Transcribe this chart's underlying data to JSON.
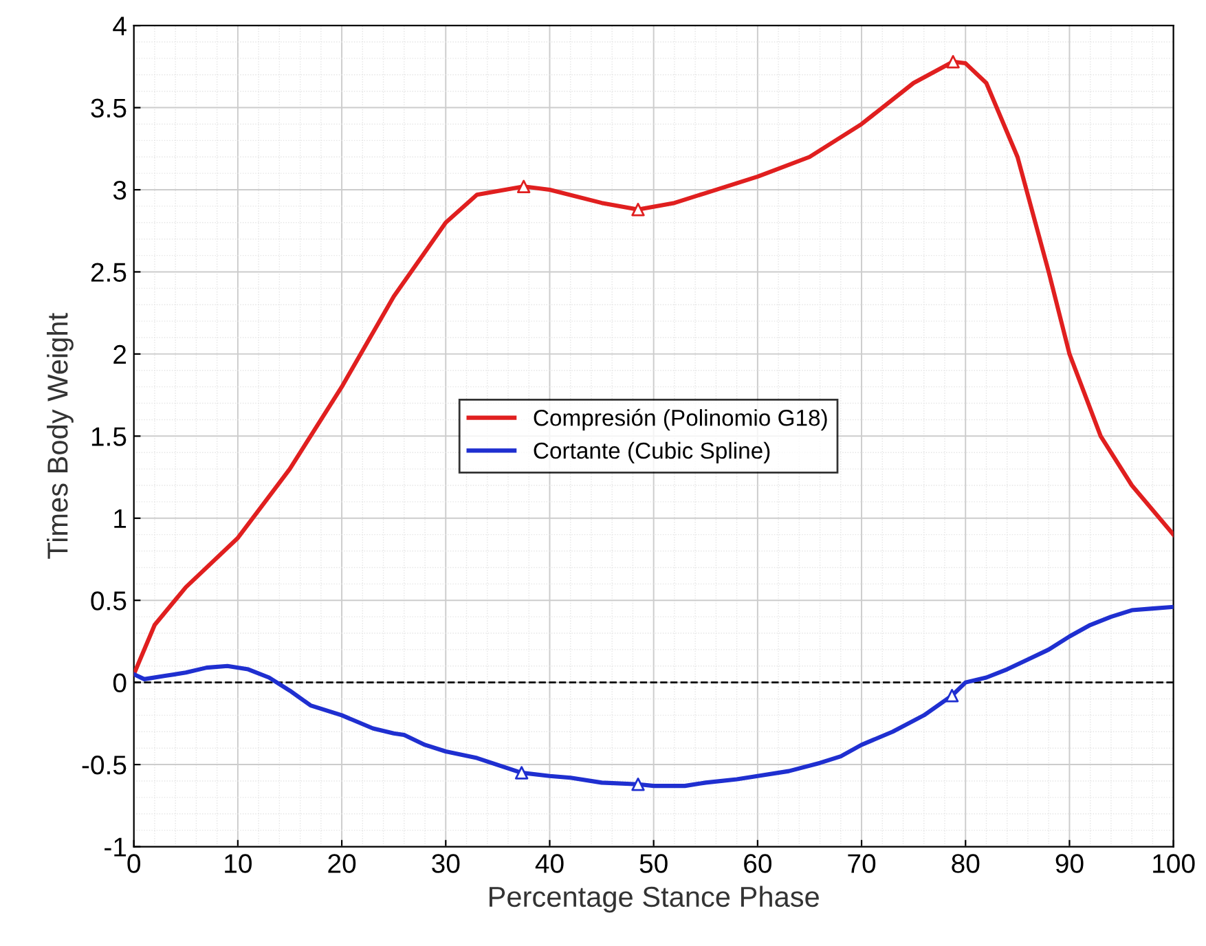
{
  "chart_data": {
    "type": "line",
    "xlabel": "Percentage Stance Phase",
    "ylabel": "Times Body Weight",
    "xlim": [
      0,
      100
    ],
    "ylim": [
      -1,
      4
    ],
    "xticks": [
      0,
      10,
      20,
      30,
      40,
      50,
      60,
      70,
      80,
      90,
      100
    ],
    "yticks": [
      -1,
      -0.5,
      0,
      0.5,
      1,
      1.5,
      2,
      2.5,
      3,
      3.5,
      4
    ],
    "grid": true,
    "legend": "center",
    "line_style": "solid",
    "series": [
      {
        "name": "Compresión (Polinomio G18)",
        "color": "#e01f1f",
        "x": [
          0,
          2,
          5,
          10,
          15,
          20,
          25,
          30,
          33,
          37.5,
          40,
          45,
          48.5,
          52,
          55,
          60,
          65,
          70,
          75,
          78.8,
          80,
          82,
          85,
          88,
          90,
          93,
          96,
          100
        ],
        "values": [
          0.05,
          0.35,
          0.58,
          0.88,
          1.3,
          1.8,
          2.35,
          2.8,
          2.97,
          3.02,
          3.0,
          2.92,
          2.88,
          2.92,
          2.98,
          3.08,
          3.2,
          3.4,
          3.65,
          3.78,
          3.77,
          3.65,
          3.2,
          2.5,
          2.0,
          1.5,
          1.2,
          0.9
        ]
      },
      {
        "name": "Cortante (Cubic Spline)",
        "color": "#1f2fd0",
        "x": [
          0,
          1,
          3,
          5,
          7,
          9,
          11,
          13,
          15,
          17,
          20,
          23,
          25,
          26,
          28,
          30,
          33,
          37.3,
          40,
          42,
          45,
          48.5,
          50,
          53,
          55,
          58,
          60,
          63,
          66,
          68,
          70,
          73,
          76,
          78.7,
          80,
          82,
          84,
          86,
          88,
          90,
          92,
          94,
          96,
          98,
          100
        ],
        "values": [
          0.05,
          0.02,
          0.04,
          0.06,
          0.09,
          0.1,
          0.08,
          0.03,
          -0.05,
          -0.14,
          -0.2,
          -0.28,
          -0.31,
          -0.32,
          -0.38,
          -0.42,
          -0.46,
          -0.55,
          -0.57,
          -0.58,
          -0.61,
          -0.62,
          -0.63,
          -0.63,
          -0.61,
          -0.59,
          -0.57,
          -0.54,
          -0.49,
          -0.45,
          -0.38,
          -0.3,
          -0.2,
          -0.08,
          0.0,
          0.03,
          0.08,
          0.14,
          0.2,
          0.28,
          0.35,
          0.4,
          0.44,
          0.45,
          0.46
        ]
      },
      {
        "type": "scatter",
        "marker": "triangle",
        "color": "#e01f1f",
        "x": [
          37.5,
          48.5,
          78.8
        ],
        "values": [
          3.02,
          2.88,
          3.78
        ]
      },
      {
        "type": "scatter",
        "marker": "triangle",
        "color": "#1f2fd0",
        "x": [
          37.3,
          48.5,
          78.7
        ],
        "values": [
          -0.55,
          -0.62,
          -0.08
        ]
      }
    ],
    "ref_lines": [
      {
        "axis": "y",
        "value": 0,
        "color": "#000000",
        "line_style": "dashed"
      }
    ]
  }
}
